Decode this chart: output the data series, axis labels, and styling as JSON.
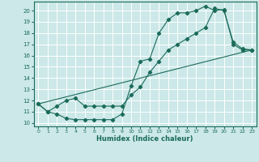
{
  "xlabel": "Humidex (Indice chaleur)",
  "bg_color": "#cce8e8",
  "grid_color": "#ffffff",
  "line_color": "#1a6b5a",
  "xlim": [
    -0.5,
    23.5
  ],
  "ylim": [
    9.7,
    20.8
  ],
  "yticks": [
    10,
    11,
    12,
    13,
    14,
    15,
    16,
    17,
    18,
    19,
    20
  ],
  "xticks": [
    0,
    1,
    2,
    3,
    4,
    5,
    6,
    7,
    8,
    9,
    10,
    11,
    12,
    13,
    14,
    15,
    16,
    17,
    18,
    19,
    20,
    21,
    22,
    23
  ],
  "line1_x": [
    0,
    1,
    2,
    3,
    4,
    5,
    6,
    7,
    8,
    9,
    10,
    11,
    12,
    13,
    14,
    15,
    16,
    17,
    18,
    19,
    20,
    21,
    22,
    23
  ],
  "line1_y": [
    11.7,
    11.0,
    10.8,
    10.4,
    10.3,
    10.3,
    10.3,
    10.3,
    10.3,
    10.8,
    13.3,
    15.5,
    15.7,
    18.0,
    19.2,
    19.8,
    19.8,
    20.0,
    20.4,
    20.0,
    20.1,
    17.0,
    16.5,
    16.5
  ],
  "line2_x": [
    0,
    1,
    2,
    3,
    4,
    5,
    6,
    7,
    8,
    9,
    10,
    11,
    12,
    13,
    14,
    15,
    16,
    17,
    18,
    19,
    20,
    21,
    22,
    23
  ],
  "line2_y": [
    11.7,
    11.0,
    11.5,
    12.0,
    12.2,
    11.5,
    11.5,
    11.5,
    11.5,
    11.5,
    12.5,
    13.2,
    14.5,
    15.5,
    16.5,
    17.0,
    17.5,
    18.0,
    18.5,
    20.2,
    20.0,
    17.2,
    16.6,
    16.5
  ],
  "line3_x": [
    0,
    23
  ],
  "line3_y": [
    11.7,
    16.5
  ]
}
